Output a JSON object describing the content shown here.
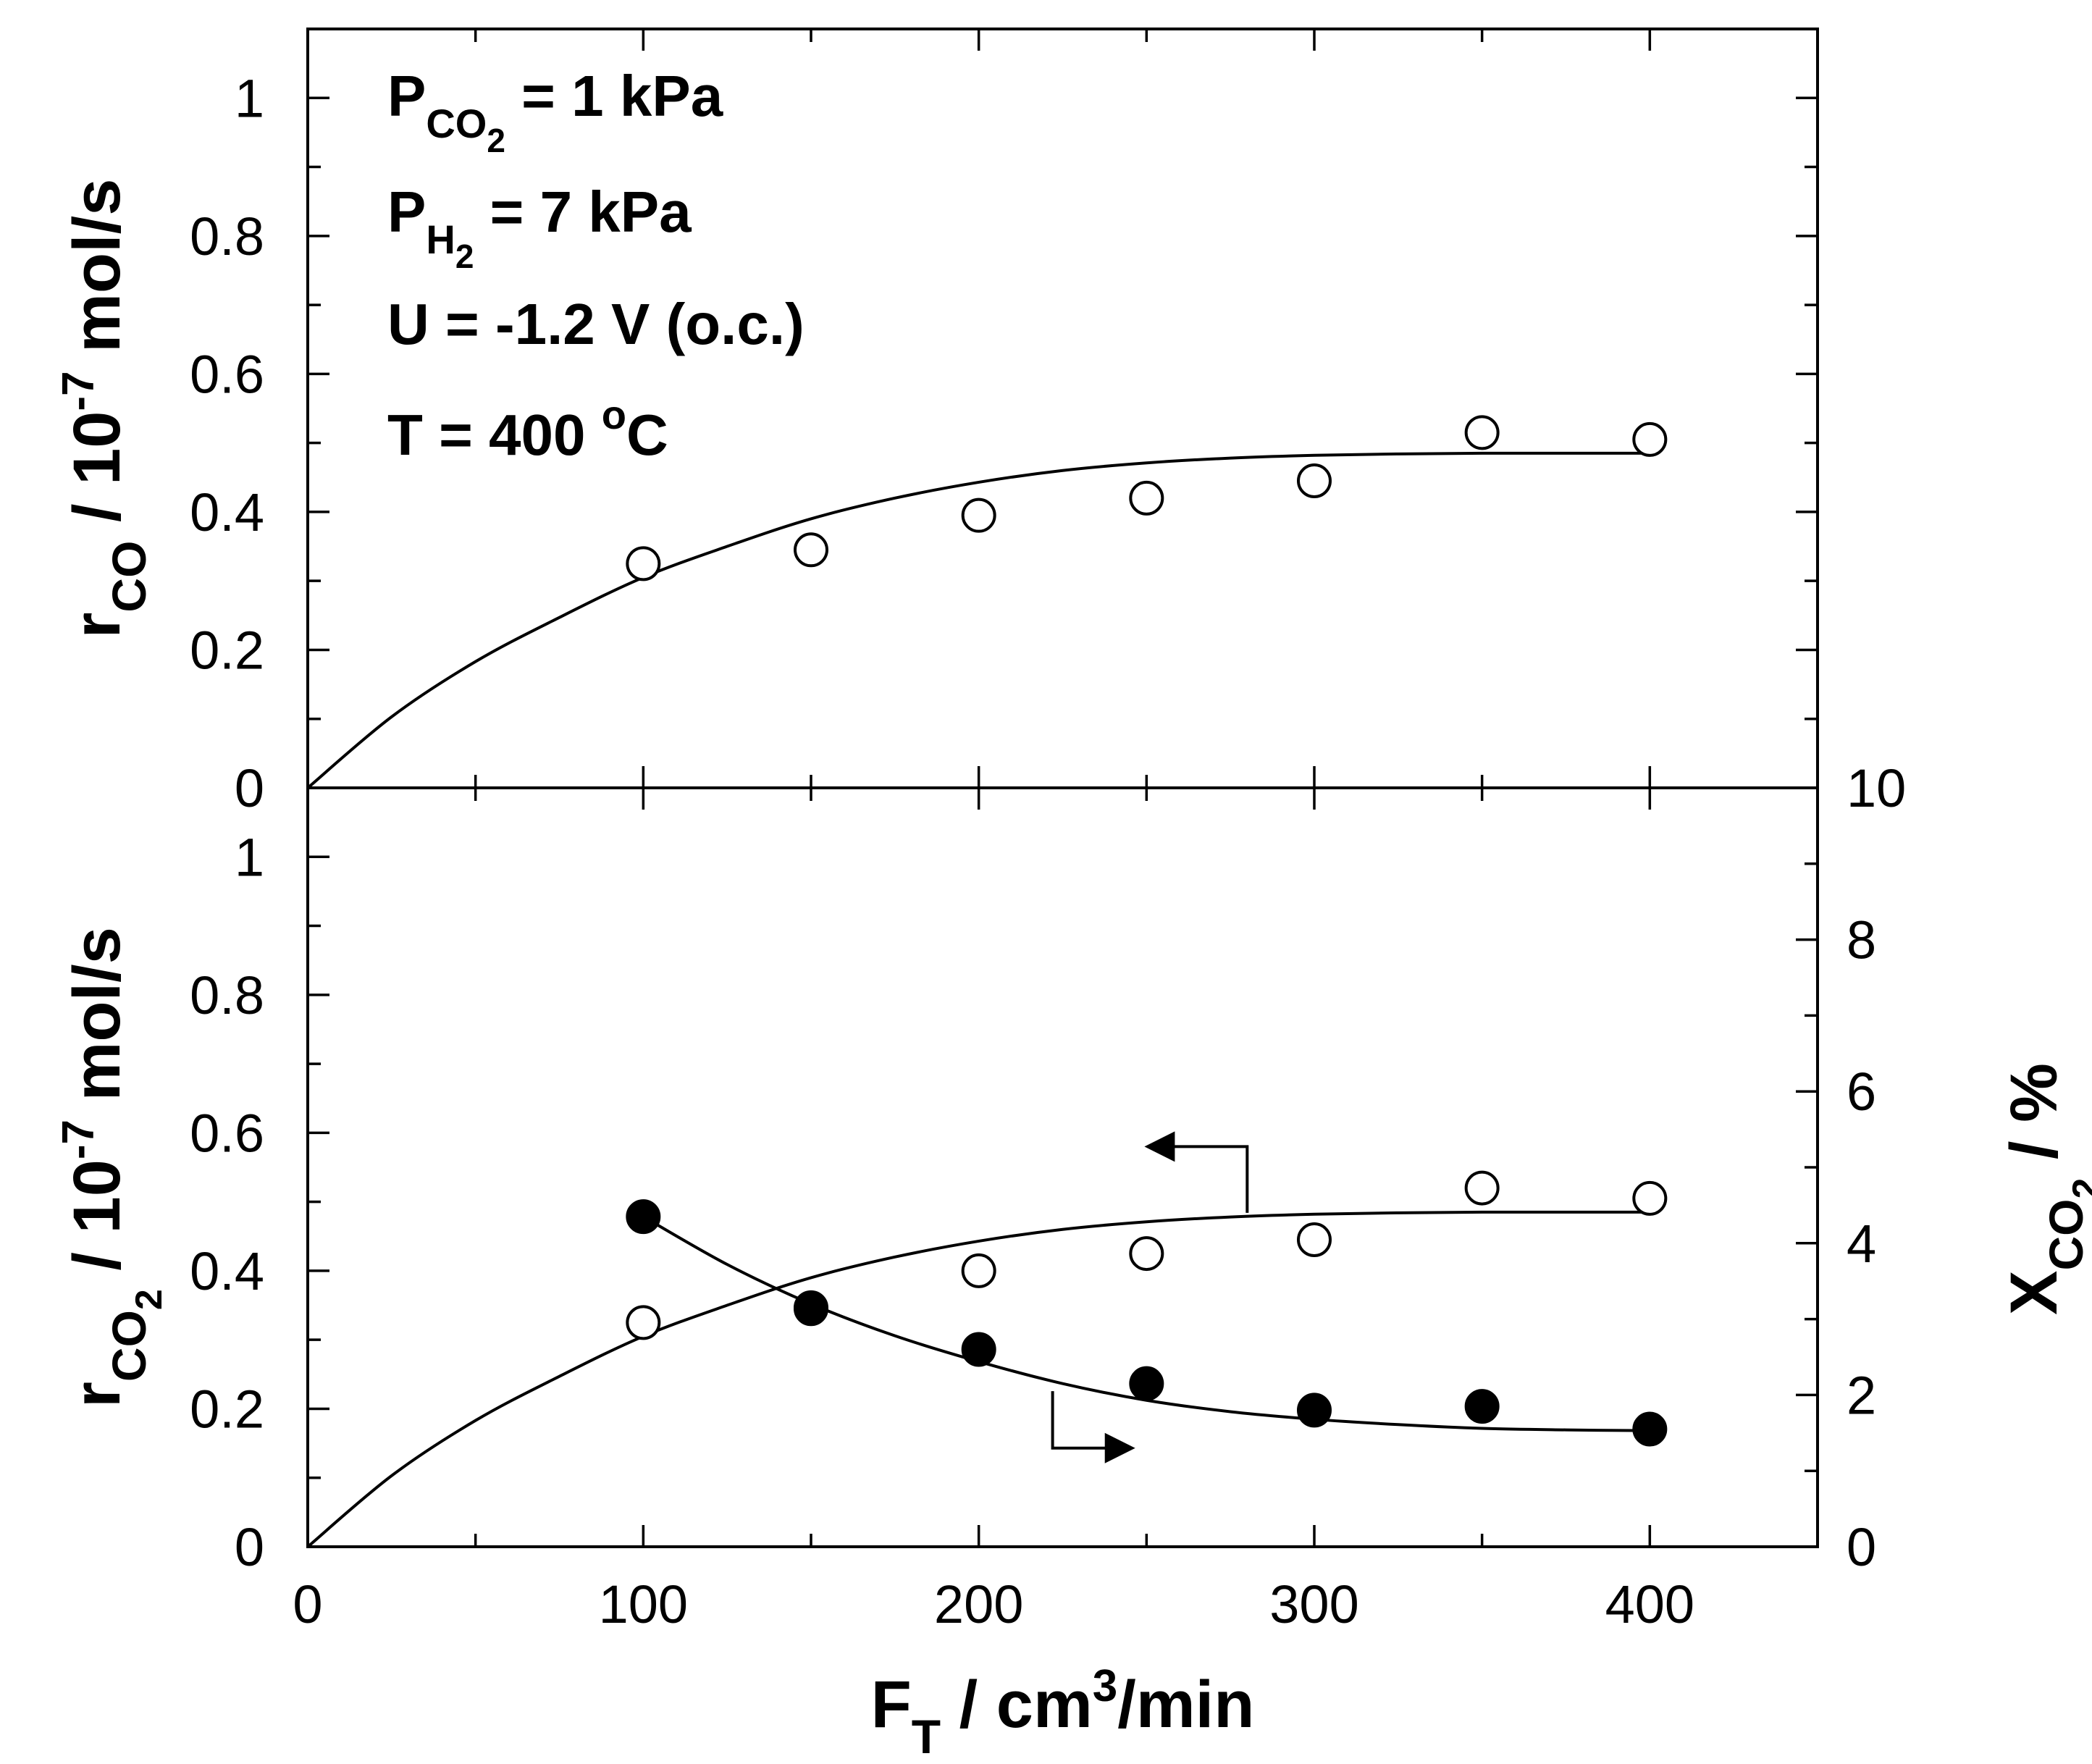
{
  "chart_data": [
    {
      "panel": "top",
      "type": "scatter",
      "xlabel": {
        "main": "F",
        "sub": "T",
        "rest": " / cm",
        "sup": "3",
        "end": "/min"
      },
      "ylabel": {
        "main": "r",
        "sub": "CO",
        "rest": " / 10",
        "sup": "-7",
        "end": " mol/s"
      },
      "xlim": [
        0,
        450
      ],
      "ylim": [
        0,
        1.1
      ],
      "xticks": [
        0,
        100,
        200,
        300,
        400
      ],
      "xtick_labels": [
        "0",
        "100",
        "200",
        "300",
        "400"
      ],
      "yticks": [
        0,
        0.2,
        0.4,
        0.6,
        0.8,
        1
      ],
      "ytick_labels": [
        "0",
        "0.2",
        "0.4",
        "0.6",
        "0.8",
        "1"
      ],
      "annotations": [
        {
          "main": "P",
          "sub": "CO",
          "sub2": "2",
          "rest": " = 1 kPa"
        },
        {
          "main": "P",
          "sub": "H",
          "sub2": "2",
          "rest": " = 7 kPa"
        },
        {
          "main": "U = -1.2 V (o.c.)"
        },
        {
          "main": "T = 400 ",
          "sup": "o",
          "rest": "C"
        }
      ],
      "series": [
        {
          "marker": "open-circle",
          "x": [
            100,
            150,
            200,
            250,
            300,
            350,
            400
          ],
          "y": [
            0.325,
            0.345,
            0.395,
            0.42,
            0.445,
            0.515,
            0.505
          ]
        }
      ],
      "fit": {
        "x": [
          0,
          25,
          50,
          75,
          100,
          125,
          150,
          175,
          200,
          225,
          250,
          275,
          300,
          325,
          350,
          375,
          400
        ],
        "y": [
          0,
          0.103,
          0.183,
          0.247,
          0.305,
          0.35,
          0.39,
          0.42,
          0.443,
          0.46,
          0.471,
          0.478,
          0.482,
          0.484,
          0.485,
          0.485,
          0.485
        ]
      }
    },
    {
      "panel": "bottom",
      "type": "scatter",
      "xlabel": {
        "main": "F",
        "sub": "T",
        "rest": " / cm",
        "sup": "3",
        "end": "/min"
      },
      "ylabel": {
        "main": "r",
        "sub": "CO",
        "sub2": "2",
        "rest": " / 10",
        "sup": "-7",
        "end": " mol/s"
      },
      "y2label": {
        "main": "X",
        "sub": "CO",
        "sub2": "2",
        "rest": " / %"
      },
      "xlim": [
        0,
        450
      ],
      "ylim": [
        0,
        1.1
      ],
      "y2lim": [
        0,
        10
      ],
      "xticks": [
        0,
        100,
        200,
        300,
        400
      ],
      "xtick_labels": [
        "0",
        "100",
        "200",
        "300",
        "400"
      ],
      "yticks": [
        0,
        0.2,
        0.4,
        0.6,
        0.8,
        1
      ],
      "ytick_labels": [
        "0",
        "0.2",
        "0.4",
        "0.6",
        "0.8",
        "1"
      ],
      "y2ticks": [
        0,
        2,
        4,
        6,
        8,
        10
      ],
      "y2tick_labels": [
        "0",
        "2",
        "4",
        "6",
        "8",
        "10"
      ],
      "series": [
        {
          "marker": "open-circle",
          "axis": "left",
          "x": [
            100,
            150,
            200,
            250,
            300,
            350,
            400
          ],
          "y": [
            0.325,
            0.345,
            0.4,
            0.425,
            0.445,
            0.52,
            0.505
          ]
        },
        {
          "marker": "filled-circle",
          "axis": "right",
          "x": [
            100,
            150,
            200,
            250,
            300,
            350,
            400
          ],
          "y": [
            4.35,
            3.15,
            2.6,
            2.15,
            1.8,
            1.85,
            1.55
          ]
        }
      ],
      "fits": [
        {
          "axis": "left",
          "x": [
            0,
            25,
            50,
            75,
            100,
            125,
            150,
            175,
            200,
            225,
            250,
            275,
            300,
            325,
            350,
            375,
            400
          ],
          "y": [
            0,
            0.103,
            0.183,
            0.247,
            0.305,
            0.35,
            0.39,
            0.42,
            0.443,
            0.46,
            0.471,
            0.478,
            0.482,
            0.484,
            0.485,
            0.485,
            0.485
          ]
        },
        {
          "axis": "right",
          "x": [
            100,
            125,
            150,
            175,
            200,
            225,
            250,
            275,
            300,
            325,
            350,
            375,
            400
          ],
          "y": [
            4.35,
            3.72,
            3.2,
            2.78,
            2.44,
            2.15,
            1.93,
            1.78,
            1.68,
            1.61,
            1.56,
            1.54,
            1.53
          ]
        }
      ]
    }
  ]
}
